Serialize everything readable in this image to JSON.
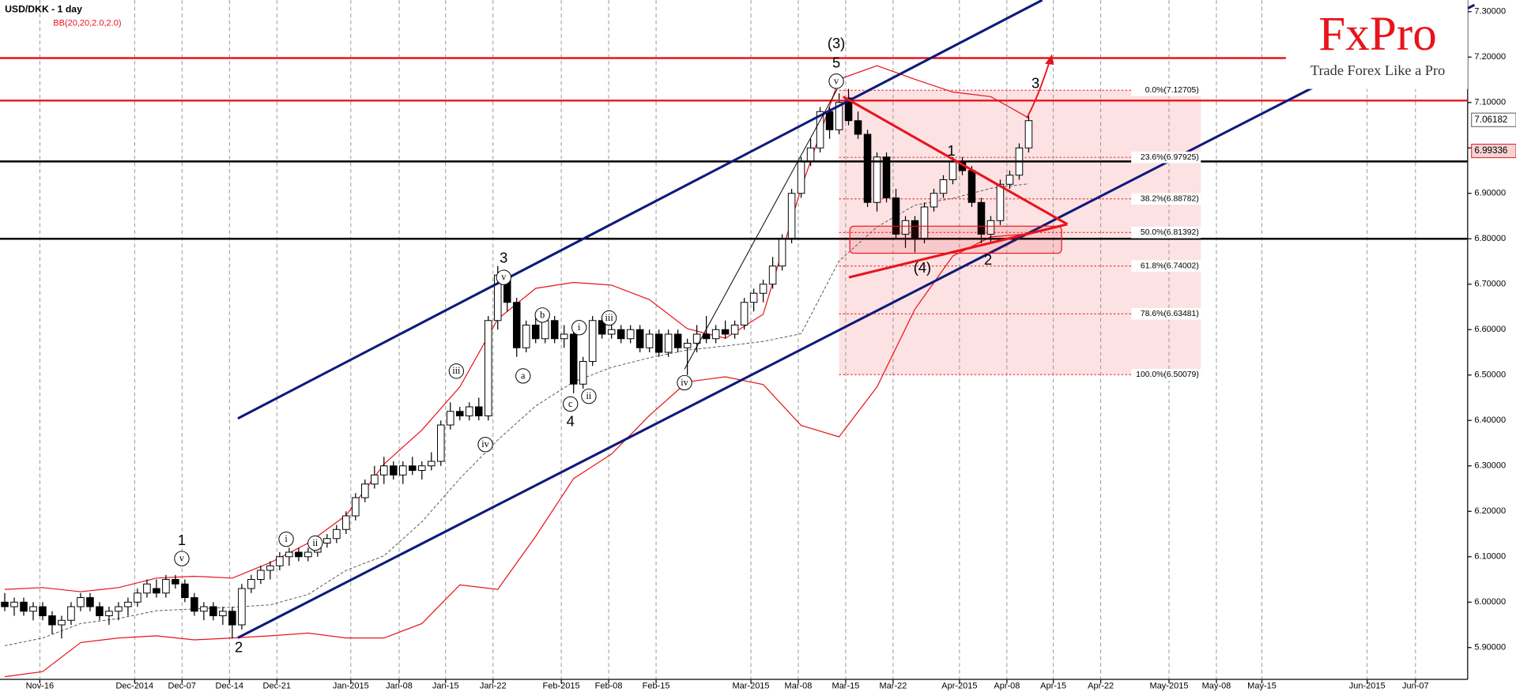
{
  "chart_data": {
    "type": "candlestick",
    "title": "USD/DKK - 1 day",
    "subtitle": "BB(20,20,2.0,2.0)",
    "logo": {
      "brand": "FxPro",
      "slogan": "Trade Forex Like a Pro"
    },
    "xlim": [
      -0.5,
      154.3
    ],
    "xticks": [
      {
        "value": 3.7,
        "label": "Nov-16"
      },
      {
        "value": 13.7,
        "label": "Dec-2014"
      },
      {
        "value": 18.7,
        "label": "Dec-07"
      },
      {
        "value": 23.7,
        "label": "Dec-14"
      },
      {
        "value": 28.7,
        "label": "Dec-21"
      },
      {
        "value": 36.5,
        "label": "Jan-2015"
      },
      {
        "value": 41.6,
        "label": "Jan-08"
      },
      {
        "value": 46.5,
        "label": "Jan-15"
      },
      {
        "value": 51.5,
        "label": "Jan-22"
      },
      {
        "value": 58.7,
        "label": "Feb-2015"
      },
      {
        "value": 63.7,
        "label": "Feb-08"
      },
      {
        "value": 68.7,
        "label": "Feb-15"
      },
      {
        "value": 78.7,
        "label": "Mar-2015"
      },
      {
        "value": 83.7,
        "label": "Mar-08"
      },
      {
        "value": 88.7,
        "label": "Mar-15"
      },
      {
        "value": 93.7,
        "label": "Mar-22"
      },
      {
        "value": 100.7,
        "label": "Apr-2015"
      },
      {
        "value": 105.7,
        "label": "Apr-08"
      },
      {
        "value": 110.6,
        "label": "Apr-15"
      },
      {
        "value": 115.6,
        "label": "Apr-22"
      },
      {
        "value": 122.8,
        "label": "May-2015"
      },
      {
        "value": 127.8,
        "label": "May-08"
      },
      {
        "value": 132.6,
        "label": "May-15"
      },
      {
        "value": 143.7,
        "label": "Jun-2015"
      },
      {
        "value": 148.8,
        "label": "Jun-07"
      }
    ],
    "ylim": [
      5.83,
      7.3255
    ],
    "yticks": [
      {
        "value": 7.3,
        "label": "7.30000"
      },
      {
        "value": 7.2,
        "label": "7.20000"
      },
      {
        "value": 7.1,
        "label": "7.10000"
      },
      {
        "value": 7.0,
        "label": "7.00000"
      },
      {
        "value": 6.9,
        "label": "6.90000"
      },
      {
        "value": 6.8,
        "label": "6.80000"
      },
      {
        "value": 6.7,
        "label": "6.70000"
      },
      {
        "value": 6.6,
        "label": "6.60000"
      },
      {
        "value": 6.5,
        "label": "6.50000"
      },
      {
        "value": 6.4,
        "label": "6.40000"
      },
      {
        "value": 6.3,
        "label": "6.30000"
      },
      {
        "value": 6.2,
        "label": "6.20000"
      },
      {
        "value": 6.1,
        "label": "6.10000"
      },
      {
        "value": 6.0,
        "label": "6.00000"
      },
      {
        "value": 5.9,
        "label": "5.90000"
      }
    ],
    "grid": true,
    "up_color": "#ffffff",
    "down_color": "#000000",
    "band_color": "#e8141b",
    "ohlc": [
      [
        6.0,
        6.02,
        5.98,
        5.99
      ],
      [
        5.99,
        6.01,
        5.97,
        6.0
      ],
      [
        6.0,
        6.01,
        5.97,
        5.98
      ],
      [
        5.98,
        6.0,
        5.96,
        5.99
      ],
      [
        5.99,
        6.0,
        5.96,
        5.97
      ],
      [
        5.97,
        5.98,
        5.93,
        5.95
      ],
      [
        5.95,
        5.97,
        5.92,
        5.96
      ],
      [
        5.96,
        6.0,
        5.95,
        5.99
      ],
      [
        5.99,
        6.02,
        5.98,
        6.01
      ],
      [
        6.01,
        6.02,
        5.98,
        5.99
      ],
      [
        5.99,
        6.0,
        5.96,
        5.97
      ],
      [
        5.97,
        5.99,
        5.95,
        5.98
      ],
      [
        5.98,
        6.0,
        5.96,
        5.99
      ],
      [
        5.99,
        6.01,
        5.97,
        6.0
      ],
      [
        6.0,
        6.03,
        5.99,
        6.02
      ],
      [
        6.02,
        6.05,
        6.01,
        6.04
      ],
      [
        6.03,
        6.05,
        6.01,
        6.02
      ],
      [
        6.02,
        6.06,
        6.01,
        6.05
      ],
      [
        6.05,
        6.06,
        6.03,
        6.04
      ],
      [
        6.04,
        6.05,
        6.0,
        6.01
      ],
      [
        6.01,
        6.02,
        5.97,
        5.98
      ],
      [
        5.98,
        6.0,
        5.96,
        5.99
      ],
      [
        5.99,
        6.0,
        5.96,
        5.97
      ],
      [
        5.97,
        5.99,
        5.95,
        5.98
      ],
      [
        5.98,
        5.99,
        5.92,
        5.95
      ],
      [
        5.95,
        6.04,
        5.94,
        6.03
      ],
      [
        6.03,
        6.06,
        6.02,
        6.05
      ],
      [
        6.05,
        6.08,
        6.04,
        6.07
      ],
      [
        6.07,
        6.09,
        6.05,
        6.08
      ],
      [
        6.08,
        6.11,
        6.07,
        6.1
      ],
      [
        6.1,
        6.12,
        6.08,
        6.11
      ],
      [
        6.11,
        6.12,
        6.09,
        6.1
      ],
      [
        6.1,
        6.12,
        6.09,
        6.11
      ],
      [
        6.11,
        6.14,
        6.1,
        6.13
      ],
      [
        6.13,
        6.15,
        6.12,
        6.14
      ],
      [
        6.14,
        6.17,
        6.13,
        6.16
      ],
      [
        6.16,
        6.2,
        6.15,
        6.19
      ],
      [
        6.19,
        6.24,
        6.18,
        6.23
      ],
      [
        6.23,
        6.27,
        6.22,
        6.26
      ],
      [
        6.26,
        6.3,
        6.25,
        6.28
      ],
      [
        6.28,
        6.32,
        6.26,
        6.3
      ],
      [
        6.3,
        6.31,
        6.27,
        6.28
      ],
      [
        6.28,
        6.31,
        6.26,
        6.3
      ],
      [
        6.3,
        6.32,
        6.28,
        6.29
      ],
      [
        6.29,
        6.31,
        6.27,
        6.3
      ],
      [
        6.3,
        6.33,
        6.29,
        6.31
      ],
      [
        6.31,
        6.4,
        6.3,
        6.39
      ],
      [
        6.39,
        6.44,
        6.38,
        6.42
      ],
      [
        6.42,
        6.43,
        6.4,
        6.41
      ],
      [
        6.41,
        6.44,
        6.4,
        6.43
      ],
      [
        6.43,
        6.45,
        6.4,
        6.41
      ],
      [
        6.41,
        6.63,
        6.4,
        6.62
      ],
      [
        6.62,
        6.74,
        6.6,
        6.72
      ],
      [
        6.72,
        6.73,
        6.64,
        6.66
      ],
      [
        6.66,
        6.67,
        6.54,
        6.56
      ],
      [
        6.56,
        6.62,
        6.55,
        6.61
      ],
      [
        6.61,
        6.63,
        6.57,
        6.58
      ],
      [
        6.58,
        6.63,
        6.57,
        6.62
      ],
      [
        6.62,
        6.63,
        6.57,
        6.58
      ],
      [
        6.58,
        6.61,
        6.56,
        6.59
      ],
      [
        6.59,
        6.6,
        6.46,
        6.48
      ],
      [
        6.48,
        6.54,
        6.47,
        6.53
      ],
      [
        6.53,
        6.63,
        6.52,
        6.62
      ],
      [
        6.62,
        6.63,
        6.58,
        6.59
      ],
      [
        6.59,
        6.62,
        6.58,
        6.6
      ],
      [
        6.6,
        6.61,
        6.57,
        6.58
      ],
      [
        6.58,
        6.61,
        6.57,
        6.6
      ],
      [
        6.6,
        6.61,
        6.55,
        6.56
      ],
      [
        6.56,
        6.6,
        6.55,
        6.59
      ],
      [
        6.59,
        6.6,
        6.54,
        6.55
      ],
      [
        6.55,
        6.6,
        6.54,
        6.59
      ],
      [
        6.59,
        6.6,
        6.55,
        6.56
      ],
      [
        6.56,
        6.58,
        6.5,
        6.57
      ],
      [
        6.57,
        6.61,
        6.55,
        6.59
      ],
      [
        6.59,
        6.63,
        6.57,
        6.58
      ],
      [
        6.58,
        6.61,
        6.57,
        6.6
      ],
      [
        6.6,
        6.62,
        6.58,
        6.59
      ],
      [
        6.59,
        6.62,
        6.58,
        6.61
      ],
      [
        6.61,
        6.67,
        6.6,
        6.66
      ],
      [
        6.66,
        6.69,
        6.64,
        6.68
      ],
      [
        6.68,
        6.71,
        6.66,
        6.7
      ],
      [
        6.7,
        6.76,
        6.69,
        6.74
      ],
      [
        6.74,
        6.81,
        6.73,
        6.8
      ],
      [
        6.8,
        6.91,
        6.79,
        6.9
      ],
      [
        6.9,
        6.98,
        6.89,
        6.97
      ],
      [
        6.97,
        7.02,
        6.96,
        7.0
      ],
      [
        7.0,
        7.09,
        6.99,
        7.08
      ],
      [
        7.08,
        7.09,
        7.02,
        7.04
      ],
      [
        7.04,
        7.12,
        7.03,
        7.1
      ],
      [
        7.11,
        7.13,
        7.05,
        7.06
      ],
      [
        7.06,
        7.08,
        7.02,
        7.03
      ],
      [
        7.03,
        7.04,
        6.87,
        6.88
      ],
      [
        6.88,
        6.99,
        6.86,
        6.98
      ],
      [
        6.98,
        6.99,
        6.88,
        6.89
      ],
      [
        6.89,
        6.91,
        6.8,
        6.81
      ],
      [
        6.81,
        6.85,
        6.78,
        6.84
      ],
      [
        6.84,
        6.85,
        6.77,
        6.8
      ],
      [
        6.8,
        6.88,
        6.79,
        6.87
      ],
      [
        6.87,
        6.91,
        6.86,
        6.9
      ],
      [
        6.9,
        6.94,
        6.89,
        6.93
      ],
      [
        6.93,
        6.98,
        6.92,
        6.97
      ],
      [
        6.97,
        6.98,
        6.94,
        6.95
      ],
      [
        6.95,
        6.96,
        6.87,
        6.88
      ],
      [
        6.88,
        6.89,
        6.79,
        6.81
      ],
      [
        6.81,
        6.85,
        6.79,
        6.84
      ],
      [
        6.84,
        6.93,
        6.83,
        6.92
      ],
      [
        6.92,
        6.95,
        6.91,
        6.94
      ],
      [
        6.94,
        7.01,
        6.93,
        7.0
      ],
      [
        7.0,
        7.07,
        6.99,
        7.06
      ]
    ],
    "bollinger": {
      "x": [
        0,
        4,
        8,
        12,
        16,
        20,
        24,
        28,
        32,
        36,
        40,
        44,
        48,
        52,
        56,
        60,
        64,
        68,
        72,
        76,
        80,
        84,
        88,
        92,
        96,
        100,
        104,
        108
      ],
      "upper": [
        6.028,
        6.032,
        6.023,
        6.032,
        6.053,
        6.057,
        6.053,
        6.087,
        6.13,
        6.191,
        6.304,
        6.379,
        6.474,
        6.623,
        6.691,
        6.704,
        6.698,
        6.666,
        6.602,
        6.581,
        6.634,
        6.911,
        7.151,
        7.181,
        7.151,
        7.123,
        7.113,
        7.066
      ],
      "middle": [
        5.904,
        5.921,
        5.953,
        5.964,
        5.981,
        5.985,
        5.989,
        5.994,
        6.017,
        6.07,
        6.102,
        6.177,
        6.272,
        6.357,
        6.432,
        6.485,
        6.517,
        6.538,
        6.555,
        6.564,
        6.574,
        6.591,
        6.751,
        6.826,
        6.874,
        6.889,
        6.911,
        6.921
      ],
      "lower": [
        5.836,
        5.847,
        5.911,
        5.921,
        5.926,
        5.917,
        5.921,
        5.926,
        5.932,
        5.921,
        5.921,
        5.953,
        6.038,
        6.028,
        6.145,
        6.272,
        6.326,
        6.411,
        6.485,
        6.496,
        6.479,
        6.389,
        6.364,
        6.474,
        6.645,
        6.762,
        6.804,
        6.811
      ]
    },
    "fib_levels": [
      {
        "value": 7.12705,
        "label": "0.0%(7.12705)"
      },
      {
        "value": 6.97925,
        "label": "23.6%(6.97925)"
      },
      {
        "value": 6.88782,
        "label": "38.2%(6.88782)"
      },
      {
        "value": 6.81392,
        "label": "50.0%(6.81392)"
      },
      {
        "value": 6.74002,
        "label": "61.8%(6.74002)"
      },
      {
        "value": 6.63481,
        "label": "78.6%(6.63481)"
      },
      {
        "value": 6.50079,
        "label": "100.0%(6.50079)"
      }
    ],
    "price_labels": [
      {
        "value": 7.06182,
        "label": "7.06182"
      },
      {
        "value": 6.99336,
        "label": "6.99336"
      }
    ],
    "wave_labels": [
      "1",
      "v",
      "2",
      "i",
      "ii",
      "iii",
      "iv",
      "3",
      "v",
      "a",
      "b",
      "c",
      "4",
      "i",
      "ii",
      "iii",
      "iv",
      "(3)",
      "5",
      "v",
      "1",
      "(4)",
      "2",
      "3"
    ]
  }
}
